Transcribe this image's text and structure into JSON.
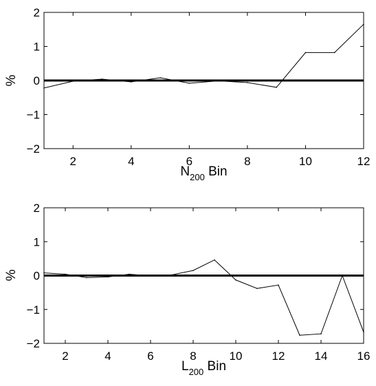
{
  "chart_data": [
    {
      "type": "line",
      "xlabel_main": "N",
      "xlabel_sub": "200",
      "xlabel_rest": " Bin",
      "ylabel": "%",
      "xlim": [
        1,
        12
      ],
      "ylim": [
        -2,
        2
      ],
      "xticks": [
        2,
        4,
        6,
        8,
        10,
        12
      ],
      "yticks": [
        -2,
        -1,
        0,
        1,
        2
      ],
      "ytick_labels": [
        "−2",
        "−1",
        "0",
        "1",
        "2"
      ],
      "grid": false,
      "zero_line": true,
      "x": [
        1,
        2,
        3,
        4,
        5,
        6,
        7,
        8,
        9,
        10,
        11,
        12
      ],
      "values": [
        -0.22,
        -0.02,
        0.04,
        -0.04,
        0.08,
        -0.08,
        -0.01,
        -0.06,
        -0.2,
        0.82,
        0.82,
        1.65
      ]
    },
    {
      "type": "line",
      "xlabel_main": "L",
      "xlabel_sub": "200",
      "xlabel_rest": " Bin",
      "ylabel": "%",
      "xlim": [
        1,
        16
      ],
      "ylim": [
        -2,
        2
      ],
      "xticks": [
        2,
        4,
        6,
        8,
        10,
        12,
        14,
        16
      ],
      "yticks": [
        -2,
        -1,
        0,
        1,
        2
      ],
      "ytick_labels": [
        "−2",
        "−1",
        "0",
        "1",
        "2"
      ],
      "grid": false,
      "zero_line": true,
      "x": [
        1,
        2,
        3,
        4,
        5,
        6,
        7,
        8,
        9,
        10,
        11,
        12,
        13,
        14,
        15,
        16
      ],
      "values": [
        0.08,
        0.04,
        -0.06,
        -0.04,
        0.04,
        -0.01,
        0.02,
        0.15,
        0.46,
        -0.13,
        -0.38,
        -0.28,
        -1.76,
        -1.72,
        0.0,
        -1.67
      ]
    }
  ]
}
